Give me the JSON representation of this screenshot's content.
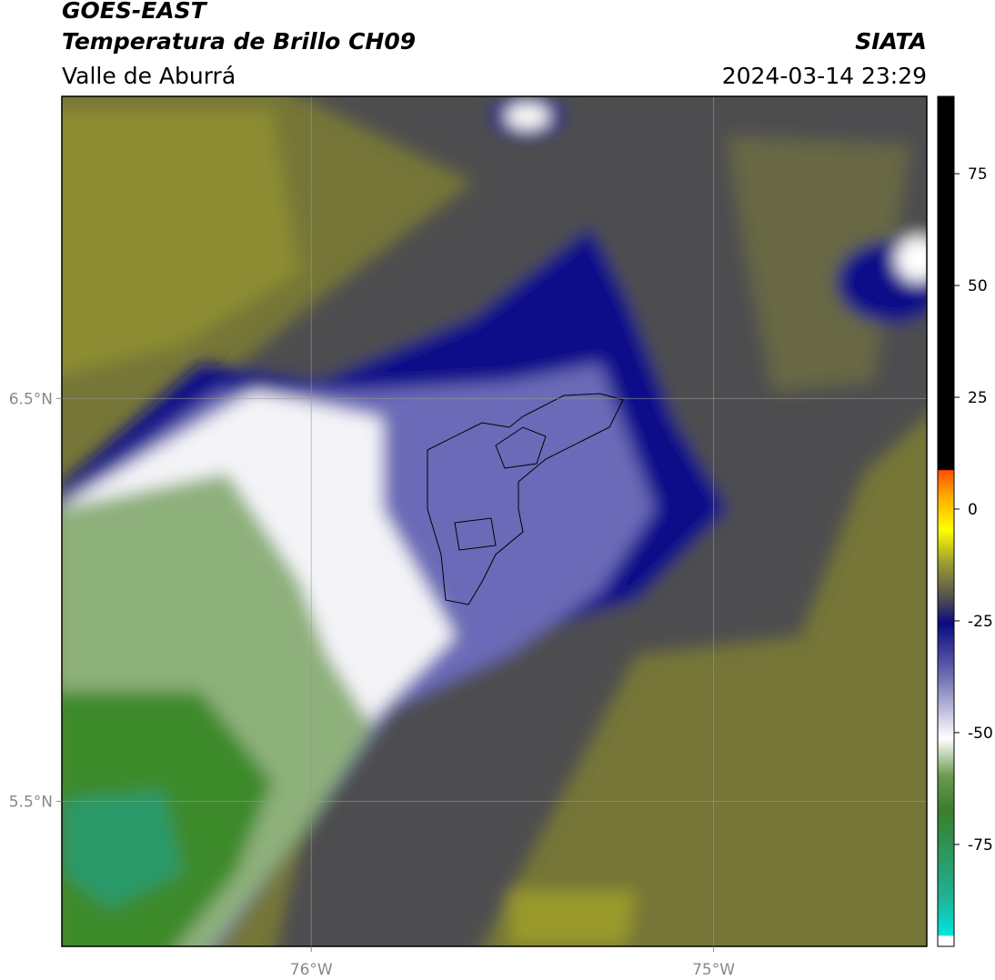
{
  "header": {
    "title": "GOES-EAST",
    "subtitle": "Temperatura de Brillo CH09",
    "source": "SIATA",
    "region": "Valle de Aburrá",
    "datetime": "2024-03-14 23:29"
  },
  "map": {
    "lonlim": [
      -76.62,
      -74.47
    ],
    "latlim": [
      5.14,
      7.25
    ],
    "lonticks": [
      {
        "value": -76,
        "label": "76°W"
      },
      {
        "value": -75,
        "label": "75°W"
      }
    ],
    "latticks": [
      {
        "value": 6.5,
        "label": "6.5°N"
      },
      {
        "value": 5.5,
        "label": "5.5°N"
      }
    ]
  },
  "colorbar": {
    "lim": [
      -97.8,
      92.3
    ],
    "ticks": [
      75,
      50,
      25,
      0,
      -25,
      -50,
      -75
    ]
  }
}
